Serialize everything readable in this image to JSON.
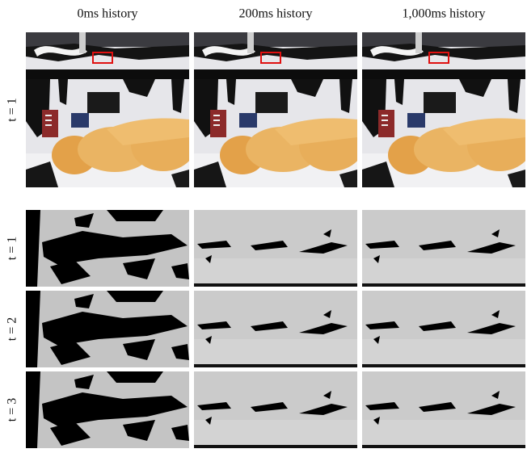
{
  "columns": [
    "0ms history",
    "200ms history",
    "1,000ms history"
  ],
  "row_labels": [
    "t = 1",
    "t = 1",
    "t = 2",
    "t = 3"
  ]
}
